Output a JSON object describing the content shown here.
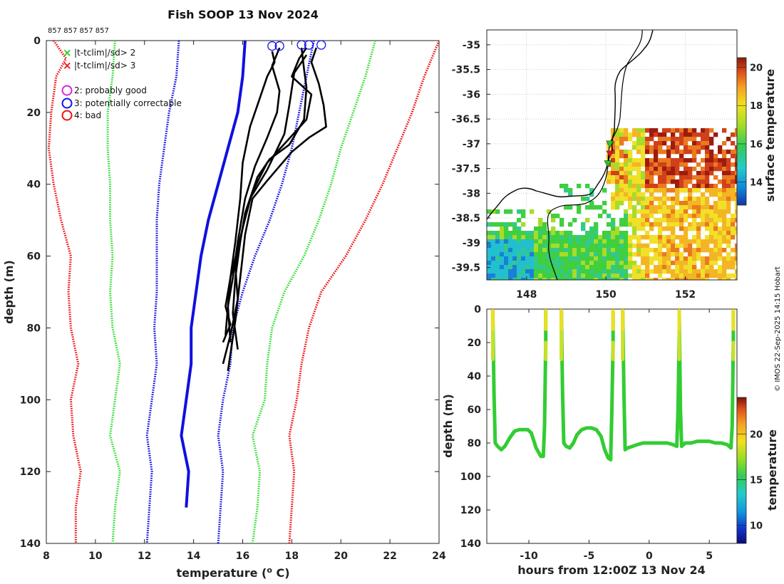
{
  "chart_data": [
    {
      "type": "line",
      "id": "profile",
      "title": "Fish SOOP 13 Nov 2024",
      "subtitle": "857 857 857 857",
      "xlabel": "temperature (",
      "xlabel_sup": "o",
      "xlabel_tail": " C)",
      "ylabel": "depth (m)",
      "xlim": [
        8,
        24
      ],
      "ylim": [
        0,
        140
      ],
      "xticks": [
        "8",
        "10",
        "12",
        "14",
        "16",
        "18",
        "20",
        "22",
        "24"
      ],
      "yticks": [
        "0",
        "20",
        "40",
        "60",
        "80",
        "100",
        "120",
        "140"
      ],
      "legend": {
        "x_items": [
          {
            "symbol": "x",
            "label": "|t-tclim|/sd> 2",
            "color": "#22cc22"
          },
          {
            "symbol": "x",
            "label": "|t-tclim|/sd> 3",
            "color": "#ee1111"
          }
        ],
        "o_items": [
          {
            "symbol": "o",
            "label": "2: probably good",
            "color": "#dd22dd"
          },
          {
            "symbol": "o",
            "label": "3: potentially correctable",
            "color": "#1111ee"
          },
          {
            "symbol": "o",
            "label": "4: bad",
            "color": "#ee1111"
          }
        ]
      },
      "climatology": [
        {
          "name": "mean",
          "color": "#1010e0",
          "style": "solid",
          "points": [
            [
              16.1,
              0
            ],
            [
              16.0,
              10
            ],
            [
              15.8,
              20
            ],
            [
              15.4,
              30
            ],
            [
              15.0,
              40
            ],
            [
              14.6,
              50
            ],
            [
              14.3,
              60
            ],
            [
              14.1,
              70
            ],
            [
              13.9,
              80
            ],
            [
              13.9,
              90
            ],
            [
              13.7,
              100
            ],
            [
              13.5,
              110
            ],
            [
              13.8,
              120
            ],
            [
              13.7,
              130
            ]
          ]
        },
        {
          "name": "minus 1 sd",
          "color": "#1010e0",
          "style": "dotted",
          "points": [
            [
              13.4,
              0
            ],
            [
              13.3,
              10
            ],
            [
              13.0,
              20
            ],
            [
              12.8,
              30
            ],
            [
              12.6,
              40
            ],
            [
              12.5,
              50
            ],
            [
              12.5,
              60
            ],
            [
              12.5,
              70
            ],
            [
              12.4,
              80
            ],
            [
              12.5,
              90
            ],
            [
              12.3,
              100
            ],
            [
              12.1,
              110
            ],
            [
              12.3,
              120
            ],
            [
              12.2,
              130
            ],
            [
              12.1,
              140
            ]
          ]
        },
        {
          "name": "plus 1 sd",
          "color": "#1010e0",
          "style": "dotted",
          "points": [
            [
              18.9,
              0
            ],
            [
              18.6,
              10
            ],
            [
              18.3,
              20
            ],
            [
              18.0,
              30
            ],
            [
              17.6,
              40
            ],
            [
              17.1,
              50
            ],
            [
              16.5,
              60
            ],
            [
              16.0,
              70
            ],
            [
              15.6,
              80
            ],
            [
              15.5,
              90
            ],
            [
              15.2,
              100
            ],
            [
              15.0,
              110
            ],
            [
              15.2,
              120
            ],
            [
              15.1,
              130
            ],
            [
              15.0,
              140
            ]
          ]
        },
        {
          "name": "minus 2 sd",
          "color": "#33dd33",
          "style": "dotted",
          "points": [
            [
              10.8,
              0
            ],
            [
              10.7,
              10
            ],
            [
              10.5,
              20
            ],
            [
              10.5,
              30
            ],
            [
              10.6,
              40
            ],
            [
              10.6,
              50
            ],
            [
              10.7,
              60
            ],
            [
              10.6,
              70
            ],
            [
              10.7,
              80
            ],
            [
              11.0,
              90
            ],
            [
              10.8,
              100
            ],
            [
              10.6,
              110
            ],
            [
              11.0,
              120
            ],
            [
              10.8,
              130
            ],
            [
              10.7,
              140
            ]
          ]
        },
        {
          "name": "plus 2 sd",
          "color": "#33dd33",
          "style": "dotted",
          "points": [
            [
              21.4,
              0
            ],
            [
              21.0,
              10
            ],
            [
              20.5,
              20
            ],
            [
              20.0,
              30
            ],
            [
              19.6,
              40
            ],
            [
              19.1,
              50
            ],
            [
              18.5,
              60
            ],
            [
              17.7,
              70
            ],
            [
              17.2,
              80
            ],
            [
              17.0,
              90
            ],
            [
              16.9,
              100
            ],
            [
              16.4,
              110
            ],
            [
              16.7,
              120
            ],
            [
              16.6,
              130
            ],
            [
              16.4,
              140
            ]
          ]
        },
        {
          "name": "minus 3 sd",
          "color": "#ee1111",
          "style": "dotted",
          "points": [
            [
              8.3,
              0
            ],
            [
              8.8,
              5
            ],
            [
              8.4,
              10
            ],
            [
              8.2,
              20
            ],
            [
              8.1,
              30
            ],
            [
              8.3,
              40
            ],
            [
              8.6,
              50
            ],
            [
              9.0,
              60
            ],
            [
              8.9,
              70
            ],
            [
              9.0,
              80
            ],
            [
              9.3,
              90
            ],
            [
              9.0,
              100
            ],
            [
              9.1,
              110
            ],
            [
              9.4,
              120
            ],
            [
              9.2,
              130
            ],
            [
              9.2,
              140
            ]
          ]
        },
        {
          "name": "plus 3 sd",
          "color": "#ee1111",
          "style": "dotted",
          "points": [
            [
              24.0,
              0
            ],
            [
              23.4,
              10
            ],
            [
              22.9,
              20
            ],
            [
              22.3,
              30
            ],
            [
              21.7,
              40
            ],
            [
              21.0,
              50
            ],
            [
              20.2,
              60
            ],
            [
              19.2,
              70
            ],
            [
              18.7,
              80
            ],
            [
              18.4,
              90
            ],
            [
              18.2,
              100
            ],
            [
              17.9,
              110
            ],
            [
              18.1,
              120
            ],
            [
              18.0,
              130
            ],
            [
              17.9,
              140
            ]
          ]
        }
      ],
      "profiles": [
        {
          "name": "profile 1",
          "color": "#000000",
          "points": [
            [
              17.2,
              3
            ],
            [
              17.3,
              6
            ],
            [
              17.0,
              10
            ],
            [
              16.7,
              16
            ],
            [
              16.3,
              24
            ],
            [
              16.0,
              34
            ],
            [
              15.9,
              44
            ],
            [
              15.7,
              56
            ],
            [
              15.5,
              66
            ],
            [
              15.4,
              74
            ],
            [
              15.3,
              82
            ]
          ]
        },
        {
          "name": "profile 2",
          "color": "#000000",
          "points": [
            [
              17.5,
              2
            ],
            [
              17.2,
              7
            ],
            [
              17.5,
              14
            ],
            [
              17.4,
              20
            ],
            [
              17.0,
              27
            ],
            [
              16.5,
              35
            ],
            [
              16.1,
              44
            ],
            [
              15.8,
              56
            ],
            [
              15.6,
              66
            ],
            [
              15.4,
              74
            ],
            [
              15.5,
              84
            ]
          ]
        },
        {
          "name": "profile 3",
          "color": "#000000",
          "points": [
            [
              18.4,
              2
            ],
            [
              18.5,
              8
            ],
            [
              18.6,
              13
            ],
            [
              18.5,
              22
            ],
            [
              17.9,
              29
            ],
            [
              17.1,
              33
            ],
            [
              16.6,
              38
            ],
            [
              16.1,
              48
            ],
            [
              15.9,
              56
            ],
            [
              15.7,
              66
            ],
            [
              15.6,
              76
            ],
            [
              15.8,
              86
            ]
          ]
        },
        {
          "name": "profile 4",
          "color": "#000000",
          "points": [
            [
              18.6,
              2
            ],
            [
              18.3,
              5
            ],
            [
              18.0,
              10
            ],
            [
              18.8,
              15
            ],
            [
              18.6,
              22
            ],
            [
              17.8,
              28
            ],
            [
              17.0,
              34
            ],
            [
              16.4,
              42
            ],
            [
              16.0,
              52
            ],
            [
              15.7,
              63
            ],
            [
              15.8,
              72
            ],
            [
              15.5,
              82
            ],
            [
              15.2,
              90
            ]
          ]
        },
        {
          "name": "profile 5",
          "color": "#000000",
          "points": [
            [
              19.0,
              2
            ],
            [
              18.8,
              6
            ],
            [
              19.1,
              12
            ],
            [
              19.3,
              18
            ],
            [
              19.4,
              24
            ],
            [
              18.7,
              27
            ],
            [
              18.0,
              31
            ],
            [
              17.0,
              39
            ],
            [
              16.4,
              44
            ],
            [
              16.1,
              54
            ],
            [
              15.9,
              66
            ],
            [
              15.7,
              78
            ],
            [
              15.4,
              92
            ]
          ]
        },
        {
          "name": "profile 6",
          "color": "#000000",
          "points": [
            [
              18.6,
              4
            ],
            [
              18.1,
              9
            ],
            [
              17.9,
              18
            ],
            [
              17.7,
              26
            ],
            [
              17.0,
              36
            ],
            [
              16.3,
              44
            ],
            [
              15.9,
              55
            ],
            [
              15.5,
              66
            ],
            [
              15.3,
              74
            ],
            [
              15.5,
              79
            ],
            [
              15.2,
              84
            ]
          ]
        }
      ],
      "qc_circles": [
        {
          "temp": 17.2,
          "depth": 1.5,
          "color": "#1111ee"
        },
        {
          "temp": 17.5,
          "depth": 1.5,
          "color": "#1111ee"
        },
        {
          "temp": 18.4,
          "depth": 1.2,
          "color": "#1111ee"
        },
        {
          "temp": 18.7,
          "depth": 1.2,
          "color": "#1111ee"
        },
        {
          "temp": 19.2,
          "depth": 1.2,
          "color": "#1111ee"
        }
      ]
    },
    {
      "type": "heatmap",
      "id": "map",
      "xticks": [
        "148",
        "150",
        "152"
      ],
      "yticks": [
        "-35",
        "-35.5",
        "-36",
        "-36.5",
        "-37",
        "-37.5",
        "-38",
        "-38.5",
        "-39",
        "-39.5"
      ],
      "xlim": [
        147.0,
        153.3
      ],
      "ylim": [
        -39.75,
        -34.7
      ],
      "colorbar": {
        "label": "surface temperature",
        "ticks": [
          "14",
          "16",
          "18",
          "20"
        ],
        "range": [
          12.8,
          20.5
        ]
      },
      "track_markers": [
        {
          "lon": 150.1,
          "lat": -37.0,
          "color": "#22cc22"
        },
        {
          "lon": 150.1,
          "lat": -37.2,
          "color": "#ee1111"
        },
        {
          "lon": 150.05,
          "lat": -37.4,
          "color": "#22cc22"
        }
      ]
    },
    {
      "type": "scatter",
      "id": "timeseries",
      "xlabel": "hours from 12:00Z 13 Nov 24",
      "ylabel": "depth (m)",
      "xlim": [
        -13.5,
        7.3
      ],
      "ylim": [
        0,
        140
      ],
      "xticks": [
        "-10",
        "-5",
        "0",
        "5"
      ],
      "yticks": [
        "0",
        "20",
        "40",
        "60",
        "80",
        "100",
        "120",
        "140"
      ],
      "colorbar": {
        "label": "temperature",
        "ticks": [
          "10",
          "15",
          "20"
        ],
        "range": [
          8,
          24
        ]
      },
      "series": [
        {
          "name": "dive 1",
          "x": [
            -13.0,
            -12.9,
            -12.8,
            -12.6,
            -12.3,
            -12.0,
            -11.6,
            -11.2,
            -10.8,
            -10.4,
            -10.1,
            -9.8,
            -9.4,
            -9.0,
            -8.8,
            -8.7,
            -8.6,
            -8.6
          ],
          "y": [
            1,
            50,
            80,
            82,
            84,
            82,
            77,
            73,
            72,
            72,
            72,
            74,
            83,
            88,
            88,
            70,
            20,
            1
          ]
        },
        {
          "name": "dive 2",
          "x": [
            -7.3,
            -7.2,
            -7.1,
            -6.9,
            -6.6,
            -6.3,
            -6.0,
            -5.6,
            -5.2,
            -4.8,
            -4.4,
            -4.0,
            -3.7,
            -3.4,
            -3.2,
            -3.1,
            -3.0,
            -3.0
          ],
          "y": [
            1,
            50,
            80,
            82,
            83,
            80,
            75,
            72,
            71,
            71,
            72,
            76,
            84,
            89,
            90,
            60,
            20,
            2
          ]
        },
        {
          "name": "dive 3",
          "x": [
            -2.2,
            -2.1,
            -2.0,
            -1.8,
            -1.4,
            -1.0,
            -0.5,
            0.0,
            0.5,
            1.0,
            1.5,
            2.0,
            2.3,
            2.4,
            2.5,
            2.5
          ],
          "y": [
            1,
            50,
            84,
            83,
            82,
            81,
            80,
            80,
            80,
            80,
            80,
            81,
            82,
            60,
            15,
            1
          ]
        },
        {
          "name": "dive 4",
          "x": [
            2.5,
            2.6,
            2.7,
            3.0,
            3.5,
            4.0,
            4.5,
            5.0,
            5.5,
            6.0,
            6.5,
            6.8,
            6.9,
            7.0,
            7.0
          ],
          "y": [
            1,
            60,
            82,
            80,
            80,
            79,
            79,
            79,
            80,
            80,
            81,
            83,
            70,
            20,
            1
          ]
        }
      ]
    }
  ],
  "credit": "© IMOS 22-Sep-2025 14:15 Hobart"
}
